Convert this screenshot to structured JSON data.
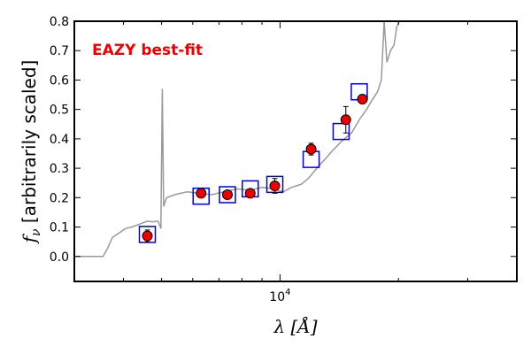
{
  "chart_data": {
    "type": "scatter",
    "x_scale": "log",
    "xlim": [
      3000,
      40000
    ],
    "ylim": [
      -0.085,
      0.8
    ],
    "yticks": [
      0.0,
      0.1,
      0.2,
      0.3,
      0.4,
      0.5,
      0.6,
      0.7,
      0.8
    ],
    "ytick_labels": [
      "0.0",
      "0.1",
      "0.2",
      "0.3",
      "0.4",
      "0.5",
      "0.6",
      "0.7",
      "0.8"
    ],
    "xtick_label": "10^4",
    "xtick_value": 10000,
    "xlabel": "λ [Å]",
    "ylabel": "fν [arbitrarily scaled]",
    "annotation": {
      "text": "EAZY best-fit",
      "color": "#ee0000"
    },
    "colors": {
      "template": "#999999",
      "model": "#0000dd",
      "observed": "#ee0000"
    },
    "grid": false,
    "series": [
      {
        "role": "template",
        "style": "line",
        "points": [
          [
            3000,
            0.0
          ],
          [
            3550,
            0.0
          ],
          [
            3650,
            0.03
          ],
          [
            3750,
            0.065
          ],
          [
            3900,
            0.08
          ],
          [
            4050,
            0.095
          ],
          [
            4200,
            0.1
          ],
          [
            4400,
            0.11
          ],
          [
            4600,
            0.12
          ],
          [
            4750,
            0.118
          ],
          [
            4900,
            0.12
          ],
          [
            4980,
            0.095
          ],
          [
            5020,
            0.57
          ],
          [
            5060,
            0.17
          ],
          [
            5150,
            0.2
          ],
          [
            5400,
            0.21
          ],
          [
            5800,
            0.22
          ],
          [
            6200,
            0.215
          ],
          [
            6700,
            0.21
          ],
          [
            7200,
            0.22
          ],
          [
            7800,
            0.23
          ],
          [
            8400,
            0.225
          ],
          [
            9000,
            0.235
          ],
          [
            9600,
            0.23
          ],
          [
            10200,
            0.22
          ],
          [
            10700,
            0.235
          ],
          [
            11300,
            0.245
          ],
          [
            11800,
            0.265
          ],
          [
            12400,
            0.3
          ],
          [
            13000,
            0.33
          ],
          [
            13600,
            0.36
          ],
          [
            14300,
            0.39
          ],
          [
            15200,
            0.42
          ],
          [
            16000,
            0.47
          ],
          [
            16600,
            0.5
          ],
          [
            17100,
            0.53
          ],
          [
            17700,
            0.56
          ],
          [
            18100,
            0.6
          ],
          [
            18400,
            0.8
          ],
          [
            18700,
            0.66
          ],
          [
            19100,
            0.7
          ],
          [
            19500,
            0.72
          ],
          [
            19800,
            0.78
          ],
          [
            20100,
            0.8
          ]
        ]
      },
      {
        "role": "model",
        "style": "open-square",
        "points": [
          [
            4600,
            0.075
          ],
          [
            6300,
            0.205
          ],
          [
            7350,
            0.21
          ],
          [
            8400,
            0.23
          ],
          [
            9700,
            0.245
          ],
          [
            12000,
            0.33
          ],
          [
            14300,
            0.425
          ],
          [
            15900,
            0.56
          ]
        ]
      },
      {
        "role": "observed",
        "style": "filled-circle",
        "points": [
          [
            4600,
            0.07,
            0.02
          ],
          [
            6300,
            0.215,
            0.012
          ],
          [
            7350,
            0.21,
            0.012
          ],
          [
            8400,
            0.215,
            0.012
          ],
          [
            9700,
            0.24,
            0.025
          ],
          [
            12000,
            0.365,
            0.02
          ],
          [
            14700,
            0.465,
            0.045
          ],
          [
            16200,
            0.535,
            0.015
          ]
        ]
      }
    ]
  }
}
